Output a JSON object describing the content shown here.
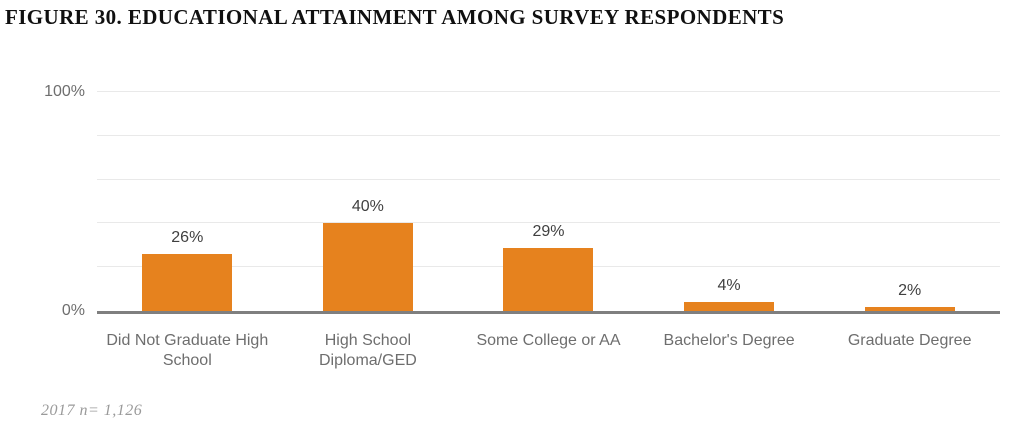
{
  "title": "FIGURE 30. EDUCATIONAL ATTAINMENT AMONG SURVEY RESPONDENTS",
  "footnote": "2017 n= 1,126",
  "chart_data": {
    "type": "bar",
    "title": "FIGURE 30. EDUCATIONAL ATTAINMENT AMONG SURVEY RESPONDENTS",
    "categories": [
      "Did Not Graduate High School",
      "High School Diploma/GED",
      "Some College or AA",
      "Bachelor's Degree",
      "Graduate Degree"
    ],
    "values": [
      26,
      40,
      29,
      4,
      2
    ],
    "data_labels": [
      "26%",
      "40%",
      "29%",
      "4%",
      "2%"
    ],
    "xlabel": "",
    "ylabel": "",
    "ylim": [
      0,
      100
    ],
    "yticks": [
      {
        "label": "100%",
        "value": 100
      },
      {
        "label": "0%",
        "value": 0
      }
    ],
    "gridline_step": 20,
    "grid": true,
    "legend": false,
    "annotation": "2017 n= 1,126",
    "bar_color": "#E6821E",
    "axis_line_color": "#7F7F7F",
    "gridline_color": "#E9E9E9",
    "category_label_color": "#6E6E6E",
    "value_label_color": "#404040"
  }
}
